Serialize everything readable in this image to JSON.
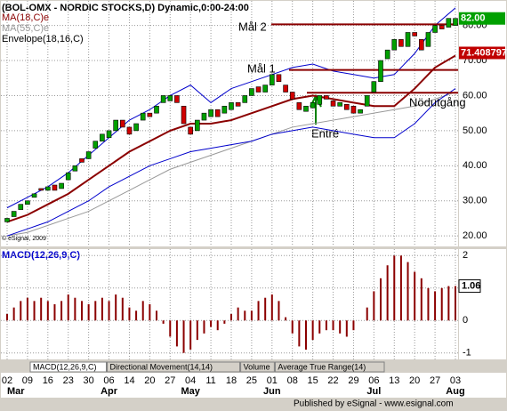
{
  "chart_data": [
    {
      "type": "candlestick",
      "title": "(BOL-OMX - NORDIC STOCKS,D) Dynamic,0:00-24:00",
      "categories": [
        "02",
        null,
        null,
        "09",
        null,
        null,
        "16",
        null,
        null,
        "23",
        null,
        null,
        "30",
        null,
        null,
        "06",
        null,
        null,
        "14",
        null,
        null,
        "20",
        null,
        null,
        "27",
        null,
        null,
        "04",
        null,
        null,
        "11",
        null,
        null,
        "18",
        null,
        null,
        "25",
        null,
        null,
        "01",
        null,
        null,
        "08",
        null,
        null,
        "15",
        null,
        null,
        "22",
        null,
        null,
        "29",
        null,
        null,
        "06",
        null,
        null,
        "13",
        null,
        null,
        "20",
        null,
        null,
        "27",
        null,
        null,
        "03"
      ],
      "months": [
        "Mar",
        null,
        null,
        null,
        null,
        null,
        null,
        null,
        null,
        null,
        null,
        null,
        null,
        null,
        null,
        "Apr",
        null,
        null,
        null,
        null,
        null,
        null,
        null,
        null,
        null,
        null,
        null,
        "May",
        null,
        null,
        null,
        null,
        null,
        null,
        null,
        null,
        null,
        null,
        null,
        "Jun",
        null,
        null,
        null,
        null,
        null,
        null,
        null,
        null,
        null,
        null,
        null,
        null,
        null,
        null,
        "Jul",
        null,
        null,
        null,
        null,
        null,
        null,
        null,
        null,
        null,
        null,
        null,
        "Aug"
      ],
      "open": [
        24,
        25.5,
        27.5,
        29,
        31,
        33.5,
        33,
        34.5,
        33.5,
        36,
        38.5,
        42,
        42,
        45,
        47,
        48,
        50,
        53,
        51,
        50,
        53,
        55,
        55,
        58,
        58.5,
        60,
        57,
        51,
        50,
        53,
        54,
        56,
        55,
        56,
        58,
        58,
        60,
        62.5,
        61,
        63,
        66,
        63,
        61,
        58,
        55.5,
        56.5,
        57.5,
        60,
        58.5,
        57,
        57.5,
        57,
        55,
        57,
        61,
        64,
        70.5,
        73,
        76,
        74,
        78,
        76,
        74,
        78,
        80,
        79.5,
        80
      ],
      "close": [
        25,
        27,
        29,
        30,
        32,
        33,
        34,
        33,
        35,
        38,
        40,
        41,
        44,
        47,
        49,
        50,
        53,
        51,
        49,
        52,
        55,
        54,
        57,
        60,
        60,
        58,
        52,
        49,
        53,
        55,
        56,
        54,
        57,
        58,
        57,
        60,
        62,
        61,
        63,
        66,
        64,
        61,
        59,
        56,
        57,
        58,
        60,
        59,
        57,
        58,
        56,
        55,
        56,
        60,
        64,
        70,
        73,
        76,
        74,
        78,
        77,
        73,
        78,
        80,
        79,
        82,
        82
      ],
      "up_color": "#00a000",
      "down_color": "#d00000",
      "series": [
        {
          "name": "MA(18,C)e",
          "color": "#8b0000",
          "x": [
            0,
            3,
            6,
            9,
            12,
            15,
            18,
            21,
            24,
            27,
            30,
            33,
            36,
            39,
            42,
            45,
            48,
            51,
            54,
            57,
            60,
            63,
            66
          ],
          "values": [
            24,
            26,
            29,
            32,
            36,
            40,
            44,
            47,
            50,
            52,
            52,
            53,
            55,
            57,
            59,
            60,
            59,
            58,
            57,
            57,
            62,
            68,
            71.4
          ]
        },
        {
          "name": "MA(55,C)e",
          "color": "#999999",
          "x": [
            0,
            3,
            6,
            9,
            12,
            15,
            18,
            21,
            24,
            27,
            30,
            33,
            36,
            39,
            42,
            45,
            48,
            51,
            54,
            57,
            60,
            63,
            66
          ],
          "values": [
            20,
            21,
            23,
            25,
            27,
            30,
            33,
            36,
            39,
            41,
            43,
            45,
            47,
            49,
            51,
            52,
            53,
            54,
            55,
            56,
            57,
            59,
            61
          ]
        },
        {
          "name": "Envelope(18,16,C)",
          "color": "#0000cc",
          "x": [
            0,
            3,
            6,
            9,
            12,
            15,
            18,
            21,
            24,
            27,
            30,
            33,
            36,
            39,
            42,
            45,
            48,
            51,
            54,
            57,
            60,
            63,
            66
          ],
          "upper": [
            28,
            31,
            34,
            38,
            43,
            48,
            53,
            56,
            60,
            63,
            58,
            62,
            64,
            66,
            68,
            69,
            67,
            66,
            65,
            66,
            72,
            80,
            85
          ],
          "lower": [
            20,
            22,
            24,
            27,
            30,
            34,
            37,
            40,
            42,
            44,
            45,
            46,
            47,
            49,
            50,
            51,
            50,
            49,
            48,
            48,
            52,
            58,
            62
          ]
        }
      ],
      "levels": [
        {
          "label": "Mål 2",
          "value": 80.3,
          "color": "#8b0000"
        },
        {
          "label": "Mål 1",
          "value": 67.3,
          "color": "#8b0000"
        },
        {
          "label": "Nödutgång",
          "value": 60.8,
          "color": "#8b0000"
        }
      ],
      "entry_label": "Entré",
      "last_price": {
        "value": 82,
        "label": "82.00",
        "color": "#00a000"
      },
      "ma_tag": {
        "value": 71.408797,
        "label": "71.408797",
        "color": "#c00000"
      },
      "ylim": [
        17,
        87
      ],
      "yticks": [
        {
          "value": 80,
          "label": "80.00"
        },
        {
          "value": 70,
          "label": "70.00"
        },
        {
          "value": 60,
          "label": "60.00"
        },
        {
          "value": 50,
          "label": "50.00"
        },
        {
          "value": 40,
          "label": "40.00"
        },
        {
          "value": 30,
          "label": "30.00"
        },
        {
          "value": 20,
          "label": "20.00"
        }
      ],
      "copyright": "© eSignal, 2009",
      "grid": true
    },
    {
      "type": "bar",
      "title": "MACD(12,26,9,C)",
      "color": "#8b0000",
      "values": [
        0.2,
        0.4,
        0.6,
        0.7,
        0.6,
        0.7,
        0.6,
        0.5,
        0.6,
        0.8,
        0.7,
        0.6,
        0.5,
        0.6,
        0.7,
        0.6,
        0.8,
        0.7,
        0.4,
        0.3,
        0.6,
        0.5,
        0.3,
        -0.1,
        -0.5,
        -0.8,
        -1.0,
        -0.9,
        -0.6,
        -0.4,
        -0.2,
        -0.3,
        -0.1,
        0.2,
        0.4,
        0.3,
        0.3,
        0.6,
        0.7,
        0.8,
        0.6,
        0.1,
        -0.4,
        -0.8,
        -0.9,
        -0.6,
        -0.4,
        -0.3,
        -0.3,
        -0.4,
        -0.5,
        -0.3,
        0.0,
        0.4,
        0.9,
        1.3,
        1.7,
        2.0,
        2.0,
        1.8,
        1.5,
        1.3,
        1.0,
        0.9,
        1.0,
        1.06,
        1.06
      ],
      "last_value": {
        "value": 1.06,
        "label": "1.06"
      },
      "ylim": [
        -1.2,
        2.2
      ],
      "yticks": [
        2,
        1,
        0,
        -1
      ],
      "grid": true
    }
  ],
  "tabs": [
    "MACD(12,26,9,C)",
    "Directional Movement(14,14)",
    "Volume",
    "Average True Range(14)"
  ],
  "footer": "Published by eSignal - www.esignal.com"
}
